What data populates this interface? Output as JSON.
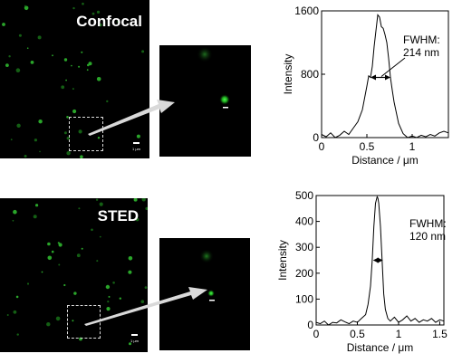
{
  "panels": [
    {
      "label": "Confocal",
      "scale_label": "1 μm",
      "chart_data": {
        "type": "line",
        "xlabel": "Distance / μm",
        "ylabel": "Intensity",
        "xlim": [
          0,
          1.4
        ],
        "ylim": [
          0,
          1600
        ],
        "xticks": [
          0,
          0.5,
          1
        ],
        "xtick_labels": [
          "0",
          "0.5",
          "1"
        ],
        "yticks": [
          0,
          800,
          1600
        ],
        "ytick_labels": [
          "0",
          "800",
          "1600"
        ],
        "annotation": [
          "FWHM:",
          "214 nm"
        ],
        "fwhm": [
          0.54,
          0.76,
          760
        ],
        "x": [
          0,
          0.05,
          0.1,
          0.15,
          0.2,
          0.25,
          0.3,
          0.35,
          0.4,
          0.45,
          0.5,
          0.52,
          0.54,
          0.56,
          0.58,
          0.6,
          0.62,
          0.64,
          0.66,
          0.68,
          0.7,
          0.72,
          0.74,
          0.76,
          0.78,
          0.8,
          0.85,
          0.9,
          0.95,
          1.0,
          1.05,
          1.1,
          1.15,
          1.2,
          1.25,
          1.3,
          1.35,
          1.4
        ],
        "y": [
          40,
          10,
          60,
          0,
          30,
          80,
          40,
          120,
          200,
          350,
          650,
          780,
          760,
          900,
          1150,
          1350,
          1550,
          1520,
          1400,
          1380,
          1300,
          1200,
          1000,
          760,
          600,
          450,
          180,
          50,
          0,
          20,
          0,
          30,
          10,
          40,
          20,
          60,
          80,
          60
        ]
      }
    },
    {
      "label": "STED",
      "scale_label": "1 μm",
      "chart_data": {
        "type": "line",
        "xlabel": "Distance / μm",
        "ylabel": "Intensity",
        "xlim": [
          0,
          1.55
        ],
        "ylim": [
          0,
          500
        ],
        "xticks": [
          0,
          0.5,
          1,
          1.5
        ],
        "xtick_labels": [
          "0",
          "0.5",
          "1",
          "1.5"
        ],
        "yticks": [
          0,
          100,
          200,
          300,
          400,
          500
        ],
        "ytick_labels": [
          "0",
          "100",
          "200",
          "300",
          "400",
          "500"
        ],
        "annotation": [
          "FWHM:",
          "120 nm"
        ],
        "fwhm": [
          0.69,
          0.81,
          250
        ],
        "x": [
          0,
          0.05,
          0.1,
          0.15,
          0.2,
          0.25,
          0.3,
          0.35,
          0.4,
          0.45,
          0.5,
          0.55,
          0.6,
          0.63,
          0.66,
          0.68,
          0.7,
          0.72,
          0.74,
          0.75,
          0.76,
          0.78,
          0.8,
          0.82,
          0.84,
          0.87,
          0.9,
          0.95,
          1.0,
          1.05,
          1.1,
          1.15,
          1.2,
          1.25,
          1.3,
          1.35,
          1.4,
          1.45,
          1.5,
          1.55
        ],
        "y": [
          10,
          5,
          15,
          0,
          10,
          8,
          20,
          12,
          5,
          15,
          10,
          25,
          40,
          80,
          150,
          250,
          380,
          470,
          495,
          490,
          470,
          380,
          250,
          120,
          60,
          25,
          15,
          30,
          10,
          20,
          35,
          15,
          25,
          10,
          20,
          15,
          25,
          10,
          20,
          15
        ]
      }
    }
  ]
}
